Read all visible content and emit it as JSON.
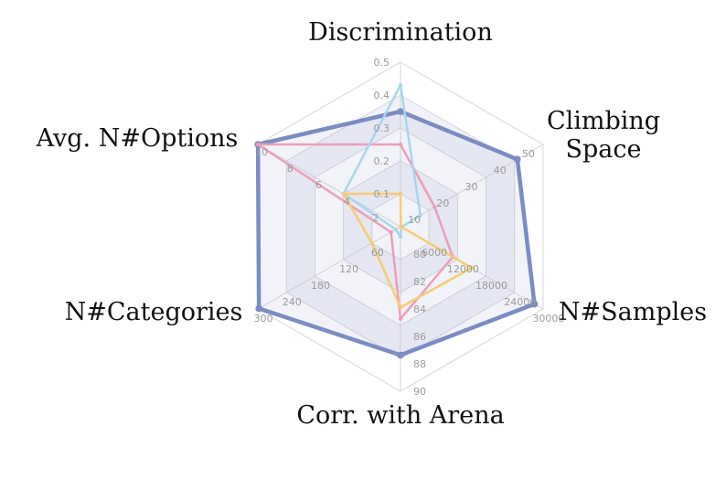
{
  "chart_data": {
    "type": "radar",
    "axes": [
      {
        "label_lines": [
          "Discrimination"
        ],
        "min": 0,
        "max": 0.5,
        "ticks": [
          "0.1",
          "0.2",
          "0.3",
          "0.4",
          "0.5"
        ]
      },
      {
        "label_lines": [
          "Climbing",
          "Space"
        ],
        "min": 0,
        "max": 50,
        "ticks": [
          "10",
          "20",
          "30",
          "40",
          "50"
        ]
      },
      {
        "label_lines": [
          "N#Samples"
        ],
        "min": 0,
        "max": 30000,
        "ticks": [
          "6000",
          "12000",
          "18000",
          "24000",
          "30000"
        ]
      },
      {
        "label_lines": [
          "Corr. with Arena"
        ],
        "min": 80,
        "max": 90,
        "ticks": [
          "80",
          "82",
          "84",
          "86",
          "88",
          "90"
        ]
      },
      {
        "label_lines": [
          "N#Categories"
        ],
        "min": 0,
        "max": 300,
        "ticks": [
          "60",
          "120",
          "180",
          "240",
          "300"
        ]
      },
      {
        "label_lines": [
          "Avg. N#Options"
        ],
        "min": 0,
        "max": 10,
        "ticks": [
          "2",
          "4",
          "6",
          "8",
          "10"
        ]
      }
    ],
    "grid_levels": 5,
    "series": [
      {
        "color": "#7b8cc4",
        "width": 4.5,
        "fill": "rgba(123,140,196,0.10)",
        "values": [
          0.35,
          41,
          28200,
          87.8,
          298,
          10
        ]
      },
      {
        "color": "#ee9db8",
        "width": 2.5,
        "values": [
          0.25,
          12,
          11000,
          85.6,
          20,
          10
        ]
      },
      {
        "color": "#a8d6ec",
        "width": 2.5,
        "values": [
          0.43,
          7,
          200,
          80.6,
          10,
          4
        ]
      },
      {
        "color": "#f9cb70",
        "width": 2.5,
        "values": [
          0.1,
          0.1,
          15000,
          84.9,
          60,
          4
        ]
      }
    ]
  }
}
